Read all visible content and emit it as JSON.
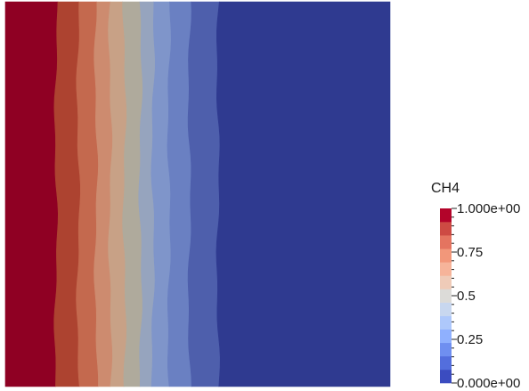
{
  "field": {
    "variable": "CH4",
    "bands": [
      {
        "from": 1.0,
        "to": 1.0,
        "color": "#8f0023"
      },
      {
        "from": 1.0,
        "to": 0.9,
        "color": "#ad4330"
      },
      {
        "from": 0.9,
        "to": 0.8,
        "color": "#c4694e"
      },
      {
        "from": 0.8,
        "to": 0.7,
        "color": "#cd8b6f"
      },
      {
        "from": 0.7,
        "to": 0.6,
        "color": "#c8a186"
      },
      {
        "from": 0.6,
        "to": 0.5,
        "color": "#afaa9c"
      },
      {
        "from": 0.5,
        "to": 0.4,
        "color": "#96a4be"
      },
      {
        "from": 0.4,
        "to": 0.3,
        "color": "#7f95ca"
      },
      {
        "from": 0.3,
        "to": 0.2,
        "color": "#6a80c2"
      },
      {
        "from": 0.2,
        "to": 0.1,
        "color": "#4e5fac"
      },
      {
        "from": 0.1,
        "to": 0.0,
        "color": "#2f3a90"
      }
    ]
  },
  "colorbar": {
    "title": "CH4",
    "range": [
      0,
      1
    ],
    "bins": [
      "#3b4cc0",
      "#536edd",
      "#6f8ff0",
      "#8fb0fe",
      "#aec8fb",
      "#c8d7ef",
      "#dcdbd8",
      "#efcbb8",
      "#f6b49a",
      "#f2977a",
      "#e47460",
      "#cd4a43",
      "#b3042a"
    ],
    "ticks": [
      {
        "value": 1.0,
        "label": "1.000e+00"
      },
      {
        "value": 0.75,
        "label": "0.75"
      },
      {
        "value": 0.5,
        "label": "0.5"
      },
      {
        "value": 0.25,
        "label": "0.25"
      },
      {
        "value": 0.0,
        "label": "0.000e+00"
      }
    ],
    "minor_tick_count": 20
  }
}
